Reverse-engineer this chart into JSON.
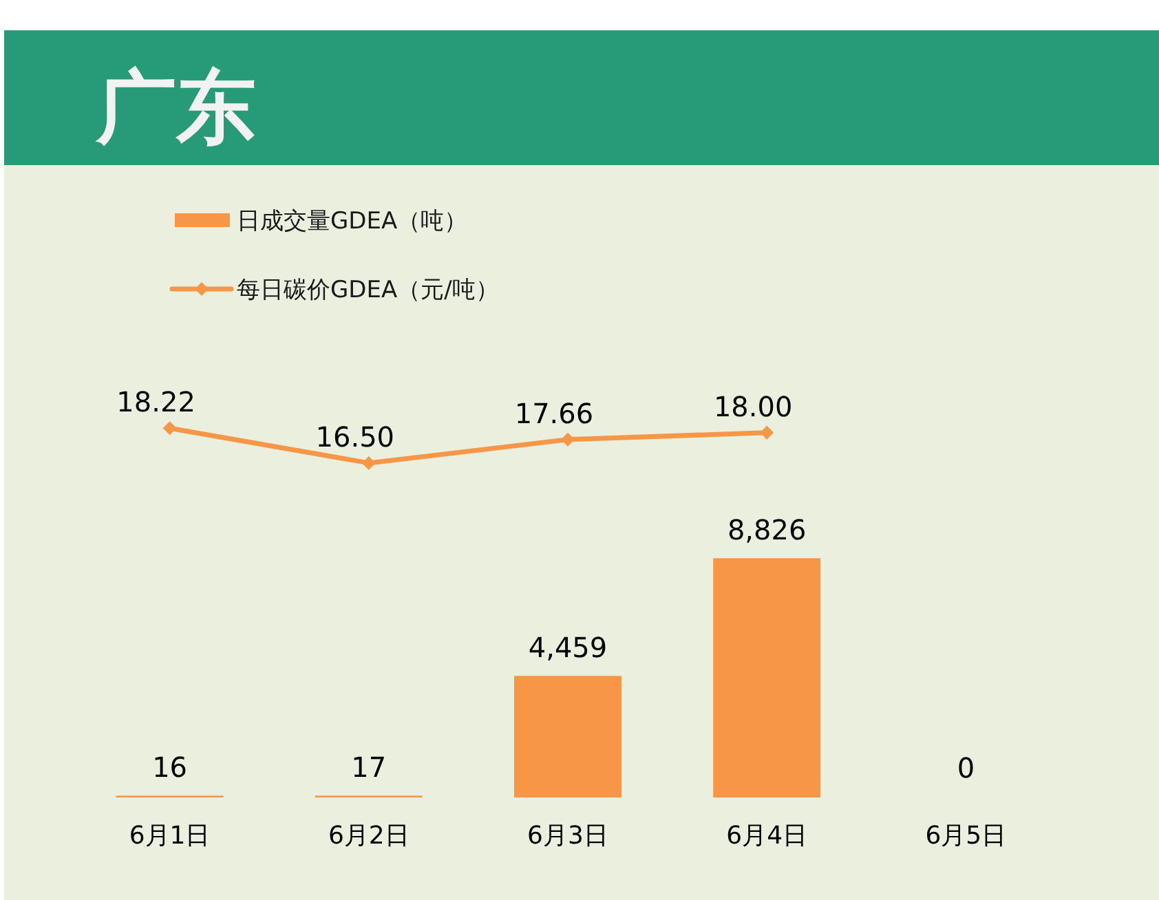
{
  "chart_data": [
    {
      "type": "bar",
      "categories": [
        "6月1日",
        "6月2日",
        "6月3日",
        "6月4日",
        "6月5日"
      ],
      "series": [
        {
          "name": "日成交量GDEA（吨）",
          "color": "#f79646",
          "values": [
            16,
            17,
            4459,
            8826,
            0
          ],
          "value_labels": [
            "16",
            "17",
            "4,459",
            "8,826",
            "0"
          ]
        }
      ],
      "legend": "top left"
    },
    {
      "type": "line",
      "title": "广东",
      "categories": [
        null,
        null,
        null,
        null,
        null
      ],
      "series": [
        {
          "name": "每日碳价GDEA（元/吨）",
          "color": "#f79646",
          "values": [
            18.22,
            16.5,
            17.66,
            18.0,
            null
          ],
          "value_labels": [
            "18.22",
            "16.50",
            "17.66",
            "18.00",
            null
          ]
        }
      ],
      "marker": "diamond",
      "legend": "top left"
    }
  ]
}
